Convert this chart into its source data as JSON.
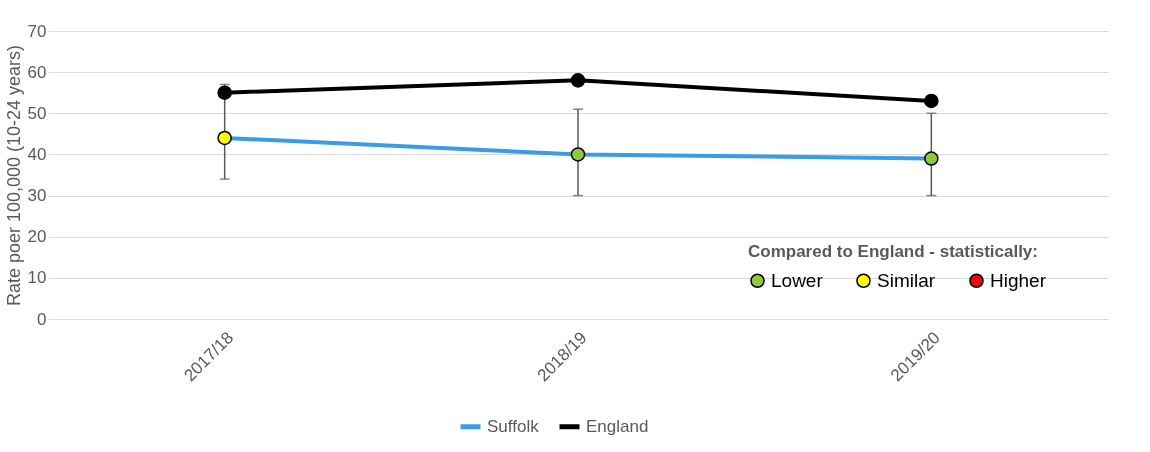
{
  "chart_data": {
    "type": "line",
    "ylabel": "Rate poer 100,000 (10-24 years)",
    "categories": [
      "2017/18",
      "2018/19",
      "2019/20"
    ],
    "series": [
      {
        "name": "Suffolk",
        "color": "#3a9be6",
        "colors": [
          "#ffff00",
          "#92c83e",
          "#92c83e"
        ],
        "values": [
          44,
          40,
          39
        ],
        "errors": [
          [
            34,
            57
          ],
          [
            30,
            51
          ],
          [
            30,
            50
          ]
        ]
      },
      {
        "name": "England",
        "color": "#000000",
        "values": [
          55,
          58,
          53
        ]
      },
      {
        "name": "Lower",
        "type": "scatter",
        "color": "#92c83e",
        "values": [
          null,
          null,
          null
        ]
      },
      {
        "name": "Similar",
        "type": "scatter",
        "color": "#ffff00",
        "values": [
          null,
          null,
          null
        ]
      },
      {
        "name": "Higher",
        "type": "scatter",
        "color": "#ff0000",
        "values": [
          null,
          null,
          null
        ]
      }
    ],
    "legend_title": "Compared to England - statistically:",
    "ylim": [
      0,
      70
    ],
    "yticks": [
      0,
      10,
      20,
      30,
      40,
      50,
      60,
      70
    ],
    "grid": "y",
    "legend": "bottom",
    "marker": "circle",
    "line_style": "solid"
  }
}
